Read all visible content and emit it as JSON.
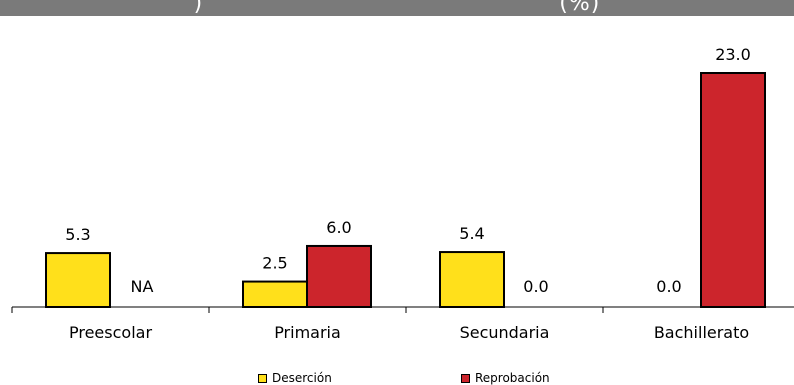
{
  "header": {
    "title_fragment": ")",
    "title_end": "(%)"
  },
  "colors": {
    "desercion": "#ffe01b",
    "reprobacion": "#cc252c",
    "header_bg": "#7a7a7a"
  },
  "chart_data": {
    "type": "bar",
    "categories": [
      "Preescolar",
      "Primaria",
      "Secundaria",
      "Bachillerato"
    ],
    "series": [
      {
        "name": "Deserción",
        "values": [
          5.3,
          2.5,
          5.4,
          0.0
        ],
        "labels": [
          "5.3",
          "2.5",
          "5.4",
          "0.0"
        ]
      },
      {
        "name": "Reprobación",
        "values": [
          null,
          6.0,
          0.0,
          23.0
        ],
        "labels": [
          "NA",
          "6.0",
          "0.0",
          "23.0"
        ]
      }
    ],
    "ylim": [
      0,
      23
    ],
    "grid": false,
    "legend_position": "bottom"
  }
}
